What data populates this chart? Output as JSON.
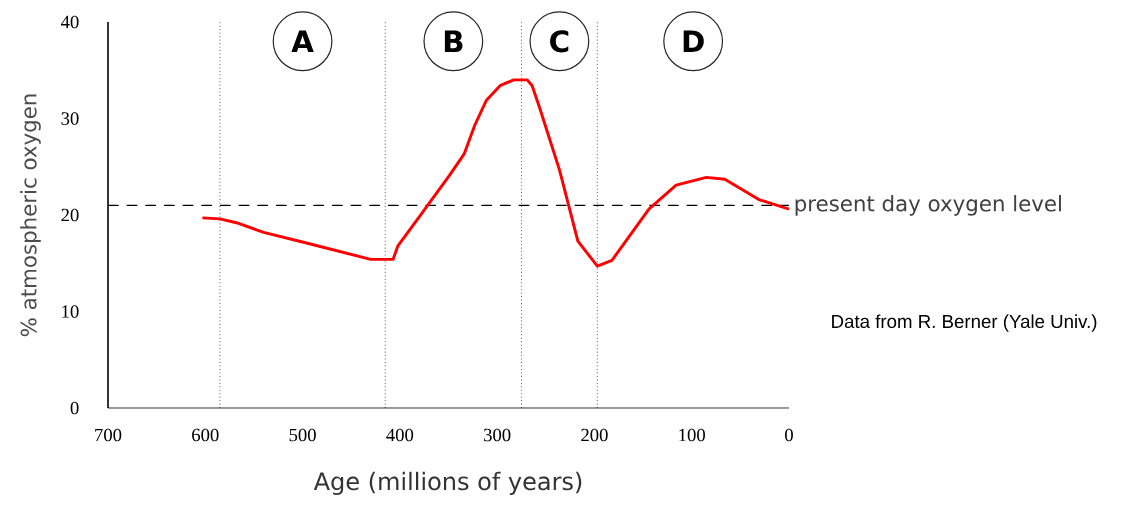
{
  "chart_data": {
    "type": "line",
    "xlabel": "Age (millions of years)",
    "ylabel": "% atmospheric oxygen",
    "x": [
      603,
      585,
      568,
      540,
      496,
      430,
      407,
      402,
      378,
      349,
      334,
      323,
      311,
      297,
      283,
      269,
      264,
      256,
      236,
      217,
      197,
      182,
      144,
      116,
      85,
      66,
      31,
      0
    ],
    "series": [
      {
        "color": "#ff0000",
        "values": [
          19.7,
          19.6,
          19.2,
          18.2,
          17.1,
          15.4,
          15.4,
          16.8,
          20.1,
          24.1,
          26.3,
          29.3,
          31.9,
          33.4,
          34.0,
          34.0,
          33.4,
          31.0,
          24.7,
          17.3,
          14.7,
          15.3,
          20.6,
          23.1,
          23.9,
          23.7,
          21.6,
          20.6
        ]
      }
    ],
    "xlim": [
      700,
      0
    ],
    "xticks": [
      700,
      600,
      500,
      400,
      300,
      200,
      100,
      0
    ],
    "ylim": [
      0,
      40
    ],
    "yticks": [
      0,
      10,
      20,
      30,
      40
    ],
    "ref_lines": [
      {
        "axis": "y",
        "value": 21,
        "label": "present day oxygen level",
        "color": "#000000",
        "line_style": "dashed"
      },
      {
        "axis": "x",
        "value": 585,
        "color": "#000000",
        "line_style": "dotted"
      },
      {
        "axis": "x",
        "value": 415,
        "color": "#000000",
        "line_style": "dotted"
      },
      {
        "axis": "x",
        "value": 275,
        "color": "#000000",
        "line_style": "dotted"
      },
      {
        "axis": "x",
        "value": 197,
        "color": "#000000",
        "line_style": "dotted"
      }
    ],
    "annotations": [
      "A",
      "B",
      "C",
      "D",
      "Data from R. Berner (Yale Univ.)"
    ],
    "marker": "none",
    "line_style": "solid"
  }
}
